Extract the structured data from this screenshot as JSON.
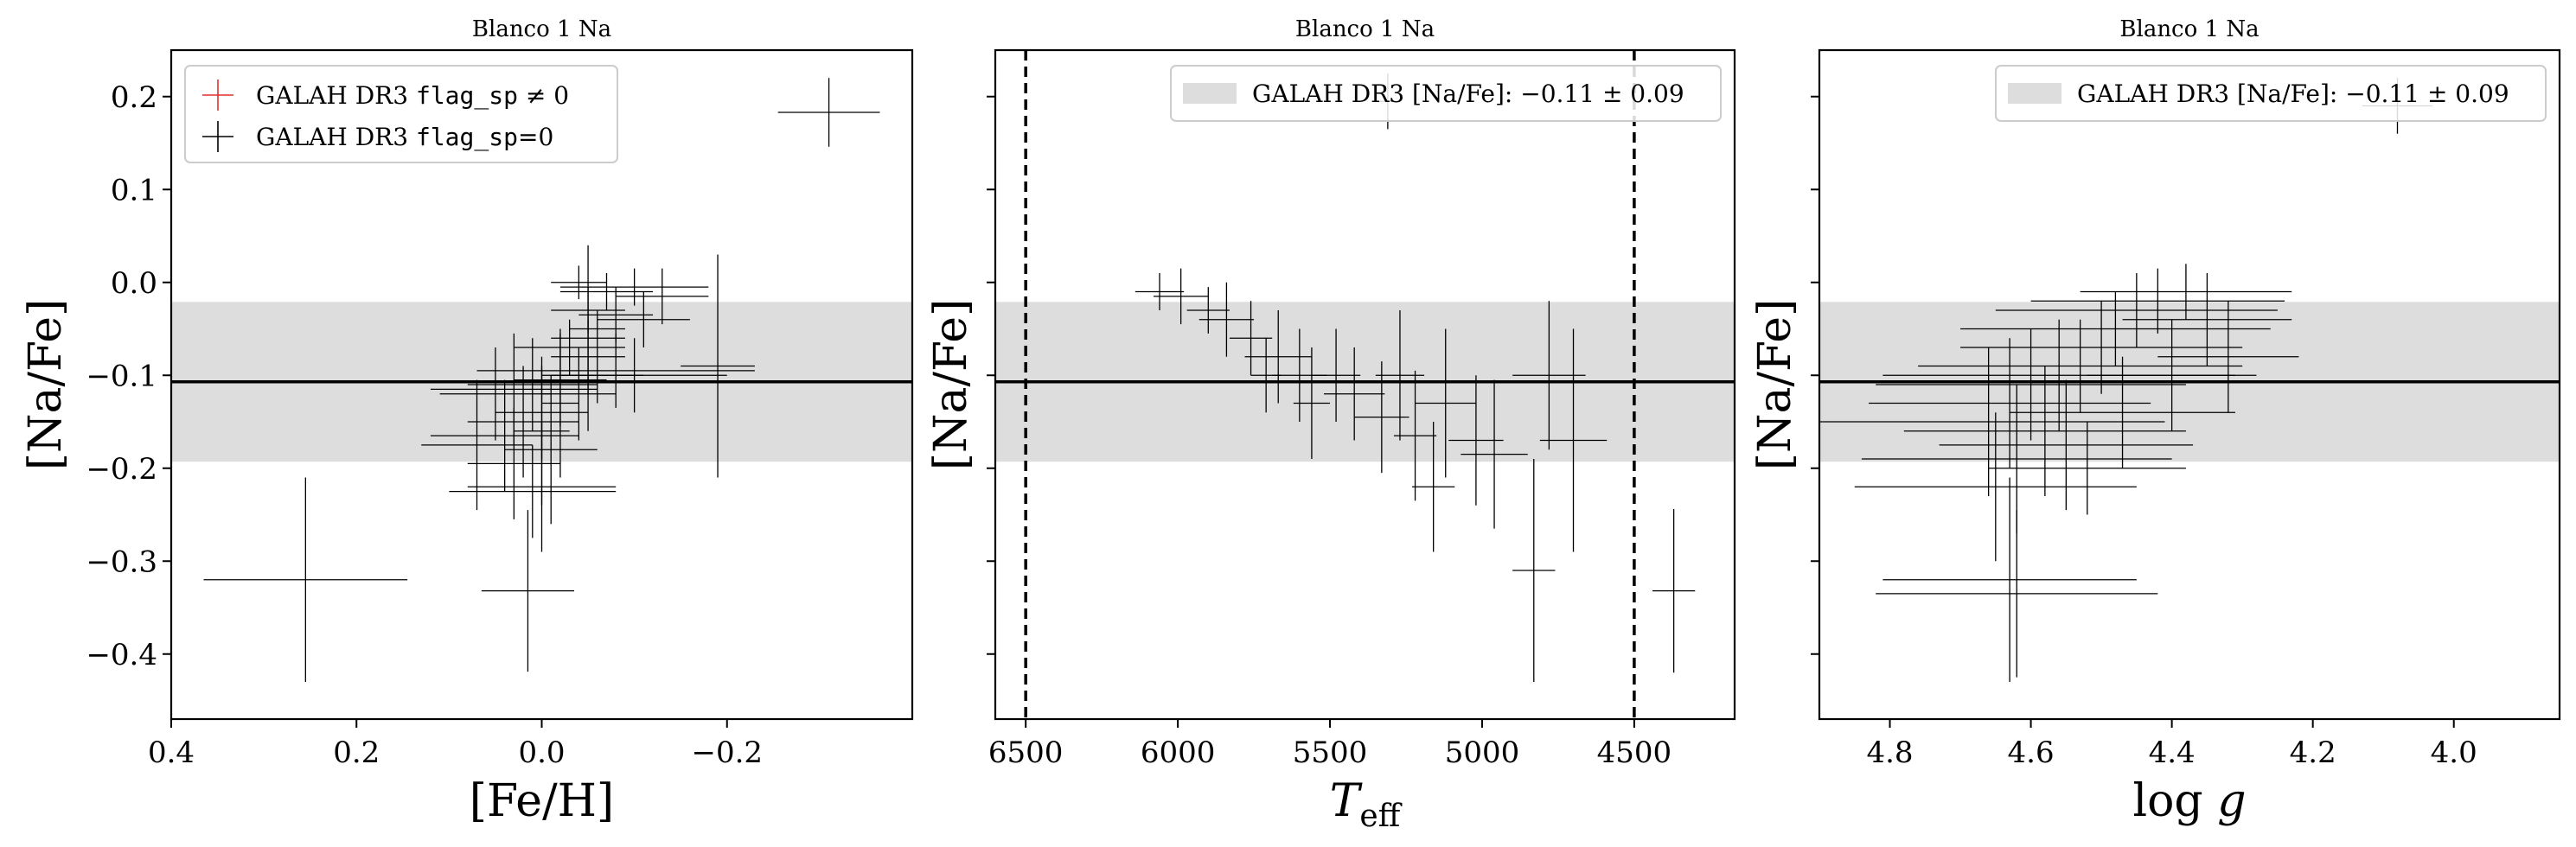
{
  "chart_data": [
    {
      "type": "scatter",
      "title": "Blanco 1 Na",
      "xlabel": "[Fe/H]",
      "ylabel": "[Na/Fe]",
      "xlim": [
        0.4,
        -0.4
      ],
      "ylim": [
        -0.47,
        0.25
      ],
      "x_inverted": true,
      "xticks": [
        "0.4",
        "0.2",
        "0.0",
        "−0.2"
      ],
      "xtick_values": [
        0.4,
        0.2,
        0.0,
        -0.2
      ],
      "yticks": [
        "0.2",
        "0.1",
        "0.0",
        "−0.1",
        "−0.2",
        "−0.3",
        "−0.4"
      ],
      "ytick_values": [
        0.2,
        0.1,
        0.0,
        -0.1,
        -0.2,
        -0.3,
        -0.4
      ],
      "show_ytick_labels": true,
      "band": {
        "center": -0.107,
        "low": -0.193,
        "high": -0.021
      },
      "vlines": [],
      "legend": {
        "position": "upper-left",
        "entries": [
          {
            "marker": "red-plus",
            "text_pre": "GALAH DR3 ",
            "code": "flag_sp",
            "text_post": " ≠ 0",
            "color": "#e03030"
          },
          {
            "marker": "black-plus",
            "text_pre": "GALAH DR3 ",
            "code": "flag_sp",
            "text_post": "=0",
            "color": "#000000"
          }
        ]
      },
      "points": [
        {
          "x": -0.31,
          "y": 0.183,
          "xerr": 0.055,
          "yerr": 0.037
        },
        {
          "x": 0.255,
          "y": -0.32,
          "xerr": 0.11,
          "yerr": 0.11
        },
        {
          "x": 0.015,
          "y": -0.332,
          "xerr": 0.05,
          "yerr": 0.087
        },
        {
          "x": -0.04,
          "y": 0.0,
          "xerr": 0.03,
          "yerr": 0.018
        },
        {
          "x": -0.07,
          "y": -0.01,
          "xerr": 0.05,
          "yerr": 0.02
        },
        {
          "x": -0.1,
          "y": -0.005,
          "xerr": 0.08,
          "yerr": 0.02
        },
        {
          "x": -0.05,
          "y": -0.03,
          "xerr": 0.04,
          "yerr": 0.025
        },
        {
          "x": -0.08,
          "y": -0.035,
          "xerr": 0.04,
          "yerr": 0.03
        },
        {
          "x": -0.11,
          "y": -0.04,
          "xerr": 0.05,
          "yerr": 0.03
        },
        {
          "x": -0.06,
          "y": -0.05,
          "xerr": 0.03,
          "yerr": 0.02
        },
        {
          "x": -0.13,
          "y": -0.015,
          "xerr": 0.05,
          "yerr": 0.03
        },
        {
          "x": -0.03,
          "y": -0.07,
          "xerr": 0.06,
          "yerr": 0.03
        },
        {
          "x": -0.05,
          "y": -0.08,
          "xerr": 0.04,
          "yerr": 0.04
        },
        {
          "x": -0.08,
          "y": -0.095,
          "xerr": 0.15,
          "yerr": 0.04
        },
        {
          "x": -0.1,
          "y": -0.1,
          "xerr": 0.1,
          "yerr": 0.04
        },
        {
          "x": -0.06,
          "y": -0.1,
          "xerr": 0.05,
          "yerr": 0.03
        },
        {
          "x": -0.19,
          "y": -0.09,
          "xerr": 0.04,
          "yerr": 0.12
        },
        {
          "x": -0.02,
          "y": -0.105,
          "xerr": 0.05,
          "yerr": 0.05
        },
        {
          "x": -0.04,
          "y": -0.12,
          "xerr": 0.04,
          "yerr": 0.05
        },
        {
          "x": 0.01,
          "y": -0.11,
          "xerr": 0.07,
          "yerr": 0.05
        },
        {
          "x": 0.03,
          "y": -0.115,
          "xerr": 0.09,
          "yerr": 0.06
        },
        {
          "x": 0.05,
          "y": -0.12,
          "xerr": 0.06,
          "yerr": 0.05
        },
        {
          "x": 0.0,
          "y": -0.14,
          "xerr": 0.05,
          "yerr": 0.05
        },
        {
          "x": 0.02,
          "y": -0.15,
          "xerr": 0.06,
          "yerr": 0.06
        },
        {
          "x": 0.04,
          "y": -0.165,
          "xerr": 0.08,
          "yerr": 0.06
        },
        {
          "x": 0.07,
          "y": -0.175,
          "xerr": 0.06,
          "yerr": 0.07
        },
        {
          "x": -0.01,
          "y": -0.18,
          "xerr": 0.05,
          "yerr": 0.08
        },
        {
          "x": 0.0,
          "y": -0.16,
          "xerr": 0.03,
          "yerr": 0.08
        },
        {
          "x": 0.03,
          "y": -0.195,
          "xerr": 0.05,
          "yerr": 0.06
        },
        {
          "x": 0.0,
          "y": -0.22,
          "xerr": 0.08,
          "yerr": 0.07
        },
        {
          "x": 0.01,
          "y": -0.225,
          "xerr": 0.09,
          "yerr": 0.05
        },
        {
          "x": -0.02,
          "y": -0.13,
          "xerr": 0.02,
          "yerr": 0.08
        },
        {
          "x": -0.05,
          "y": -0.06,
          "xerr": 0.04,
          "yerr": 0.1
        }
      ]
    },
    {
      "type": "scatter",
      "title": "Blanco 1 Na",
      "xlabel": "T_eff",
      "ylabel": "[Na/Fe]",
      "xlim": [
        6600,
        4170
      ],
      "ylim": [
        -0.47,
        0.25
      ],
      "x_inverted": true,
      "xticks": [
        "6500",
        "6000",
        "5500",
        "5000",
        "4500"
      ],
      "xtick_values": [
        6500,
        6000,
        5500,
        5000,
        4500
      ],
      "yticks": [],
      "ytick_values": [
        0.2,
        0.1,
        0.0,
        -0.1,
        -0.2,
        -0.3,
        -0.4
      ],
      "show_ytick_labels": false,
      "band": {
        "center": -0.107,
        "low": -0.193,
        "high": -0.021
      },
      "vlines": [
        6500,
        4500
      ],
      "legend": {
        "position": "upper-right",
        "entries": [
          {
            "marker": "band",
            "text_pre": "GALAH DR3 [Na/Fe]: −0.11 ± 0.09",
            "code": "",
            "text_post": "",
            "color": "#dddddd"
          }
        ]
      },
      "points": [
        {
          "x": 5310,
          "y": 0.195,
          "xerr": 40,
          "yerr": 0.03
        },
        {
          "x": 4370,
          "y": -0.332,
          "xerr": 70,
          "yerr": 0.088
        },
        {
          "x": 6060,
          "y": -0.01,
          "xerr": 80,
          "yerr": 0.02
        },
        {
          "x": 5990,
          "y": -0.015,
          "xerr": 90,
          "yerr": 0.03
        },
        {
          "x": 5900,
          "y": -0.03,
          "xerr": 70,
          "yerr": 0.025
        },
        {
          "x": 5840,
          "y": -0.04,
          "xerr": 90,
          "yerr": 0.04
        },
        {
          "x": 5760,
          "y": -0.06,
          "xerr": 70,
          "yerr": 0.04
        },
        {
          "x": 5670,
          "y": -0.08,
          "xerr": 110,
          "yerr": 0.05
        },
        {
          "x": 5600,
          "y": -0.1,
          "xerr": 90,
          "yerr": 0.05
        },
        {
          "x": 5480,
          "y": -0.1,
          "xerr": 80,
          "yerr": 0.05
        },
        {
          "x": 5420,
          "y": -0.12,
          "xerr": 100,
          "yerr": 0.05
        },
        {
          "x": 5330,
          "y": -0.145,
          "xerr": 90,
          "yerr": 0.06
        },
        {
          "x": 5270,
          "y": -0.1,
          "xerr": 80,
          "yerr": 0.07
        },
        {
          "x": 5220,
          "y": -0.165,
          "xerr": 70,
          "yerr": 0.07
        },
        {
          "x": 5120,
          "y": -0.13,
          "xerr": 100,
          "yerr": 0.08
        },
        {
          "x": 5020,
          "y": -0.17,
          "xerr": 90,
          "yerr": 0.07
        },
        {
          "x": 4960,
          "y": -0.185,
          "xerr": 110,
          "yerr": 0.08
        },
        {
          "x": 4830,
          "y": -0.31,
          "xerr": 70,
          "yerr": 0.12
        },
        {
          "x": 4780,
          "y": -0.1,
          "xerr": 120,
          "yerr": 0.08
        },
        {
          "x": 4700,
          "y": -0.17,
          "xerr": 110,
          "yerr": 0.12
        },
        {
          "x": 5710,
          "y": -0.1,
          "xerr": 50,
          "yerr": 0.04
        },
        {
          "x": 5560,
          "y": -0.13,
          "xerr": 60,
          "yerr": 0.06
        },
        {
          "x": 5160,
          "y": -0.22,
          "xerr": 70,
          "yerr": 0.07
        }
      ]
    },
    {
      "type": "scatter",
      "title": "Blanco 1 Na",
      "xlabel": "log g",
      "ylabel": "[Na/Fe]",
      "xlim": [
        4.9,
        3.85
      ],
      "ylim": [
        -0.47,
        0.25
      ],
      "x_inverted": true,
      "xticks": [
        "4.8",
        "4.6",
        "4.4",
        "4.2",
        "4.0"
      ],
      "xtick_values": [
        4.8,
        4.6,
        4.4,
        4.2,
        4.0
      ],
      "yticks": [],
      "ytick_values": [
        0.2,
        0.1,
        0.0,
        -0.1,
        -0.2,
        -0.3,
        -0.4
      ],
      "show_ytick_labels": false,
      "band": {
        "center": -0.107,
        "low": -0.193,
        "high": -0.021
      },
      "vlines": [],
      "legend": {
        "position": "upper-right",
        "entries": [
          {
            "marker": "band",
            "text_pre": "GALAH DR3 [Na/Fe]: −0.11 ± 0.09",
            "code": "",
            "text_post": "",
            "color": "#dddddd"
          }
        ]
      },
      "points": [
        {
          "x": 4.08,
          "y": 0.19,
          "xerr": 0.05,
          "yerr": 0.03
        },
        {
          "x": 4.63,
          "y": -0.32,
          "xerr": 0.18,
          "yerr": 0.11
        },
        {
          "x": 4.62,
          "y": -0.335,
          "xerr": 0.2,
          "yerr": 0.09
        },
        {
          "x": 4.38,
          "y": -0.01,
          "xerr": 0.15,
          "yerr": 0.03
        },
        {
          "x": 4.42,
          "y": -0.02,
          "xerr": 0.18,
          "yerr": 0.035
        },
        {
          "x": 4.45,
          "y": -0.03,
          "xerr": 0.2,
          "yerr": 0.04
        },
        {
          "x": 4.48,
          "y": -0.05,
          "xerr": 0.22,
          "yerr": 0.04
        },
        {
          "x": 4.5,
          "y": -0.07,
          "xerr": 0.2,
          "yerr": 0.05
        },
        {
          "x": 4.53,
          "y": -0.09,
          "xerr": 0.23,
          "yerr": 0.05
        },
        {
          "x": 4.56,
          "y": -0.1,
          "xerr": 0.25,
          "yerr": 0.06
        },
        {
          "x": 4.6,
          "y": -0.11,
          "xerr": 0.22,
          "yerr": 0.06
        },
        {
          "x": 4.63,
          "y": -0.13,
          "xerr": 0.2,
          "yerr": 0.07
        },
        {
          "x": 4.66,
          "y": -0.15,
          "xerr": 0.25,
          "yerr": 0.08
        },
        {
          "x": 4.58,
          "y": -0.16,
          "xerr": 0.2,
          "yerr": 0.07
        },
        {
          "x": 4.55,
          "y": -0.175,
          "xerr": 0.18,
          "yerr": 0.07
        },
        {
          "x": 4.62,
          "y": -0.19,
          "xerr": 0.22,
          "yerr": 0.08
        },
        {
          "x": 4.65,
          "y": -0.22,
          "xerr": 0.2,
          "yerr": 0.08
        },
        {
          "x": 4.4,
          "y": -0.1,
          "xerr": 0.12,
          "yerr": 0.06
        },
        {
          "x": 4.35,
          "y": -0.04,
          "xerr": 0.12,
          "yerr": 0.05
        },
        {
          "x": 4.32,
          "y": -0.08,
          "xerr": 0.1,
          "yerr": 0.06
        },
        {
          "x": 4.47,
          "y": -0.14,
          "xerr": 0.16,
          "yerr": 0.06
        },
        {
          "x": 4.52,
          "y": -0.2,
          "xerr": 0.14,
          "yerr": 0.05
        }
      ]
    }
  ]
}
